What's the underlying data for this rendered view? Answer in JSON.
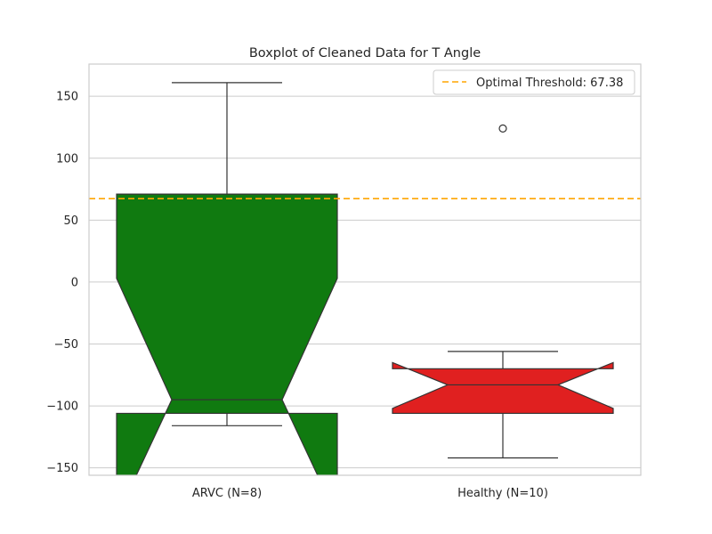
{
  "chart_data": {
    "type": "boxplot",
    "title": "Boxplot of Cleaned Data for T Angle",
    "xlabel": "",
    "ylabel": "",
    "categories": [
      "ARVC (N=8)",
      "Healthy (N=10)"
    ],
    "ylim": [
      -156,
      176
    ],
    "yticks": [
      150,
      100,
      50,
      0,
      -50,
      -100,
      -150
    ],
    "ytick_labels": [
      "150",
      "100",
      "50",
      "0",
      "−50",
      "−100",
      "−150"
    ],
    "grid": true,
    "notched": true,
    "boxes": [
      {
        "category": "ARVC (N=8)",
        "color": "#107a10",
        "q1": -106,
        "median": -95,
        "q3": 71,
        "notch_low": -190,
        "notch_high": 3,
        "whisker_low": -116,
        "whisker_high": 161,
        "outliers": []
      },
      {
        "category": "Healthy (N=10)",
        "color": "#e02020",
        "q1": -106,
        "median": -83,
        "q3": -70,
        "notch_low": -102,
        "notch_high": -65,
        "whisker_low": -142,
        "whisker_high": -56,
        "outliers": [
          124
        ]
      }
    ],
    "threshold": {
      "value": 67.38,
      "color": "#ffa500",
      "style": "dashed"
    },
    "legend": {
      "position": "top-right",
      "entries": [
        "Optimal Threshold: 67.38"
      ]
    }
  }
}
